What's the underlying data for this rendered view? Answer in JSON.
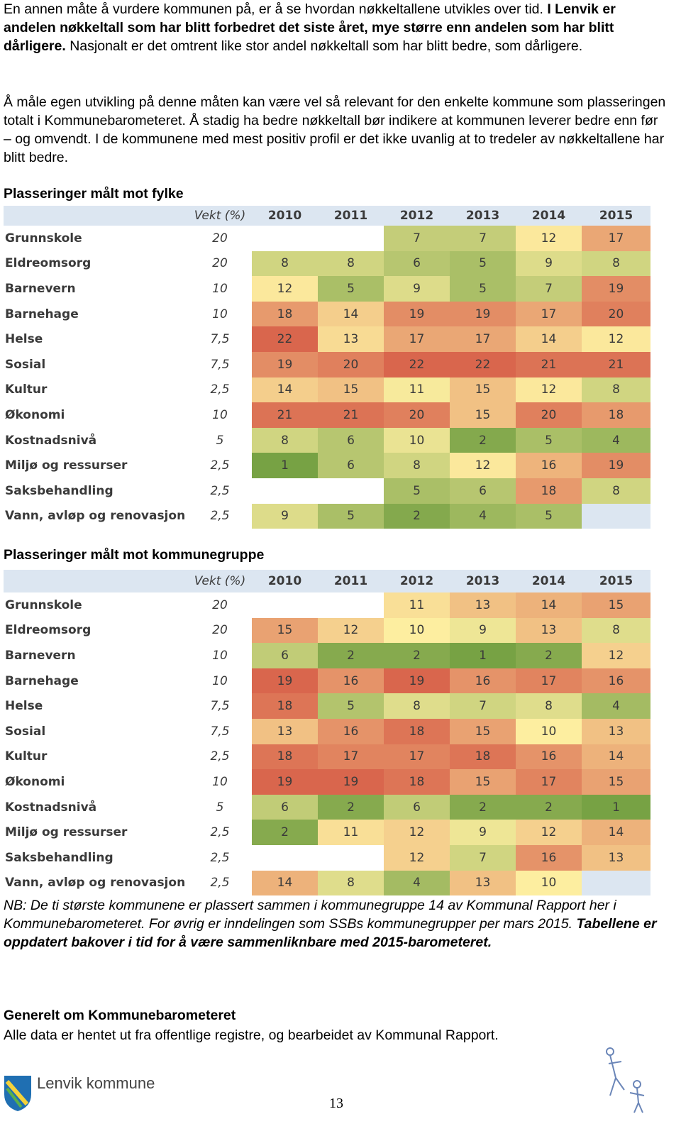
{
  "paragraphs": [
    [
      {
        "text": "En annen måte å vurdere kommunen på, er å se hvordan nøkkeltallene utvikles over tid. ",
        "bold": false
      },
      {
        "text": "I Lenvik er andelen nøkkeltall som har blitt forbedret det siste året, mye større enn andelen som har blitt dårligere.",
        "bold": true
      },
      {
        "text": " Nasjonalt er det omtrent like stor andel nøkkeltall som har blitt bedre, som dårligere.",
        "bold": false
      }
    ],
    [
      {
        "text": "Å måle egen utvikling på denne måten kan være vel så relevant for den enkelte kommune som plasseringen totalt i Kommunebarometeret. Å stadig ha bedre nøkkeltall bør indikere at kommunen leverer bedre enn før – og omvendt. I de kommunene med mest positiv profil er det ikke uvanlig at to tredeler av nøkkeltallene har blitt bedre.",
        "bold": false
      }
    ]
  ],
  "color_scale": [
    "#77a244",
    "#fdeea0",
    "#d9664d"
  ],
  "tables": [
    {
      "heading": "Plasseringer målt mot fylke",
      "columns": [
        "Vekt (%)",
        "2010",
        "2011",
        "2012",
        "2013",
        "2014",
        "2015"
      ],
      "rows": [
        {
          "label": "Grunnskole",
          "weight": "20",
          "values": [
            null,
            null,
            7,
            7,
            12,
            17
          ]
        },
        {
          "label": "Eldreomsorg",
          "weight": "20",
          "values": [
            8,
            8,
            6,
            5,
            9,
            8
          ]
        },
        {
          "label": "Barnevern",
          "weight": "10",
          "values": [
            12,
            5,
            9,
            5,
            7,
            19
          ]
        },
        {
          "label": "Barnehage",
          "weight": "10",
          "values": [
            18,
            14,
            19,
            19,
            17,
            20
          ]
        },
        {
          "label": "Helse",
          "weight": "7,5",
          "values": [
            22,
            13,
            17,
            17,
            14,
            12
          ]
        },
        {
          "label": "Sosial",
          "weight": "7,5",
          "values": [
            19,
            20,
            22,
            22,
            21,
            21
          ]
        },
        {
          "label": "Kultur",
          "weight": "2,5",
          "values": [
            14,
            15,
            11,
            15,
            12,
            8
          ]
        },
        {
          "label": "Økonomi",
          "weight": "10",
          "values": [
            21,
            21,
            20,
            15,
            20,
            18
          ]
        },
        {
          "label": "Kostnadsnivå",
          "weight": "5",
          "values": [
            8,
            6,
            10,
            2,
            5,
            4
          ]
        },
        {
          "label": "Miljø og ressurser",
          "weight": "2,5",
          "values": [
            1,
            6,
            8,
            12,
            16,
            19
          ]
        },
        {
          "label": "Saksbehandling",
          "weight": "2,5",
          "values": [
            null,
            null,
            5,
            6,
            18,
            8
          ]
        },
        {
          "label": "Vann, avløp og renovasjon",
          "weight": "2,5",
          "values": [
            9,
            5,
            2,
            4,
            5,
            null
          ]
        }
      ]
    },
    {
      "heading": "Plasseringer målt mot kommunegruppe",
      "columns": [
        "Vekt (%)",
        "2010",
        "2011",
        "2012",
        "2013",
        "2014",
        "2015"
      ],
      "rows": [
        {
          "label": "Grunnskole",
          "weight": "20",
          "values": [
            null,
            null,
            11,
            13,
            14,
            15
          ]
        },
        {
          "label": "Eldreomsorg",
          "weight": "20",
          "values": [
            15,
            12,
            10,
            9,
            13,
            8
          ]
        },
        {
          "label": "Barnevern",
          "weight": "10",
          "values": [
            6,
            2,
            2,
            1,
            2,
            12
          ]
        },
        {
          "label": "Barnehage",
          "weight": "10",
          "values": [
            19,
            16,
            19,
            16,
            17,
            16
          ]
        },
        {
          "label": "Helse",
          "weight": "7,5",
          "values": [
            18,
            5,
            8,
            7,
            8,
            4
          ]
        },
        {
          "label": "Sosial",
          "weight": "7,5",
          "values": [
            13,
            16,
            18,
            15,
            10,
            13
          ]
        },
        {
          "label": "Kultur",
          "weight": "2,5",
          "values": [
            18,
            17,
            17,
            18,
            16,
            14
          ]
        },
        {
          "label": "Økonomi",
          "weight": "10",
          "values": [
            19,
            19,
            18,
            15,
            17,
            15
          ]
        },
        {
          "label": "Kostnadsnivå",
          "weight": "5",
          "values": [
            6,
            2,
            6,
            2,
            2,
            1
          ]
        },
        {
          "label": "Miljø og ressurser",
          "weight": "2,5",
          "values": [
            2,
            11,
            12,
            9,
            12,
            14
          ]
        },
        {
          "label": "Saksbehandling",
          "weight": "2,5",
          "values": [
            null,
            null,
            12,
            7,
            16,
            13
          ]
        },
        {
          "label": "Vann, avløp og renovasjon",
          "weight": "2,5",
          "values": [
            14,
            8,
            4,
            13,
            10,
            null
          ]
        }
      ]
    }
  ],
  "note": [
    {
      "text": "NB: De ti største kommunene er plassert sammen i kommunegruppe 14 av Kommunal Rapport her i Kommunebarometeret. For øvrig er inndelingen som SSBs kommunegrupper per mars 2015. ",
      "bold": false
    },
    {
      "text": "Tabellene er oppdatert bakover i tid for å være sammenliknbare med 2015-barometeret.",
      "bold": true
    }
  ],
  "section": {
    "heading": "Generelt om Kommunebarometeret",
    "text": "Alle data er hentet ut fra offentlige registre, og bearbeidet av Kommunal Rapport."
  },
  "footer": {
    "logo_text": "Lenvik kommune",
    "page_number": "13"
  }
}
